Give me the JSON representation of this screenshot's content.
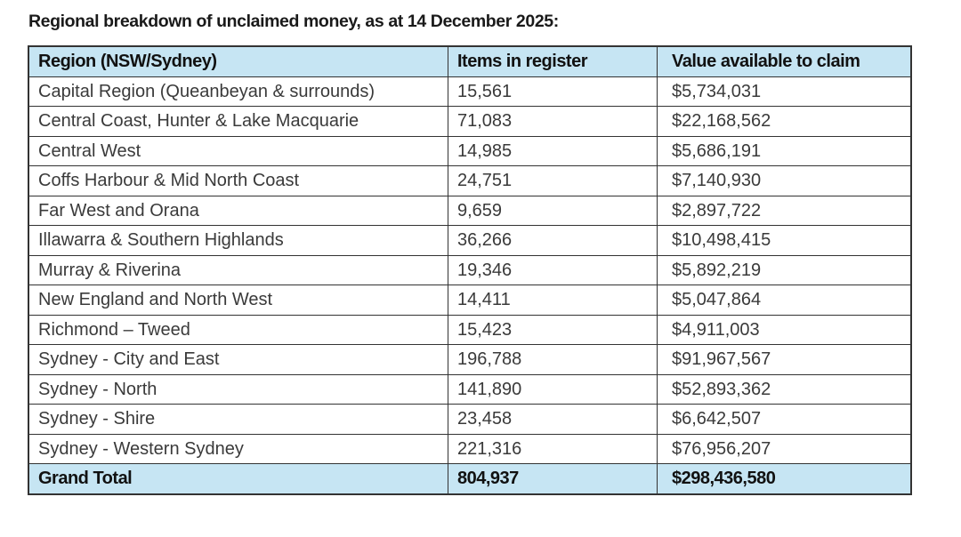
{
  "title": "Regional breakdown of unclaimed money, as at 14 December 2025:",
  "table": {
    "headers": [
      "Region (NSW/Sydney)",
      "Items in register",
      "Value available to claim"
    ],
    "rows": [
      [
        "Capital Region (Queanbeyan & surrounds)",
        "15,561",
        "$5,734,031"
      ],
      [
        "Central Coast, Hunter & Lake Macquarie",
        "71,083",
        "$22,168,562"
      ],
      [
        "Central West",
        "14,985",
        "$5,686,191"
      ],
      [
        "Coffs Harbour & Mid North Coast",
        "24,751",
        "$7,140,930"
      ],
      [
        "Far West and Orana",
        "9,659",
        "$2,897,722"
      ],
      [
        "Illawarra & Southern Highlands",
        "36,266",
        "$10,498,415"
      ],
      [
        "Murray & Riverina",
        "19,346",
        "$5,892,219"
      ],
      [
        "New England and North West",
        "14,411",
        "$5,047,864"
      ],
      [
        "Richmond – Tweed",
        "15,423",
        "$4,911,003"
      ],
      [
        "Sydney - City and East",
        "196,788",
        "$91,967,567"
      ],
      [
        "Sydney - North",
        "141,890",
        "$52,893,362"
      ],
      [
        "Sydney - Shire",
        "23,458",
        "$6,642,507"
      ],
      [
        "Sydney - Western Sydney",
        "221,316",
        "$76,956,207"
      ]
    ],
    "total": [
      "Grand Total",
      "804,937",
      "$298,436,580"
    ]
  },
  "colors": {
    "header_bg": "#c6e5f3",
    "border": "#333333"
  }
}
